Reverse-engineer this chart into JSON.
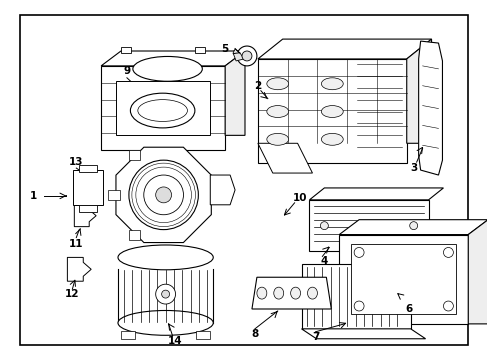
{
  "background_color": "#ffffff",
  "border_color": "#000000",
  "line_color": "#000000",
  "fig_width": 4.89,
  "fig_height": 3.6,
  "dpi": 100
}
